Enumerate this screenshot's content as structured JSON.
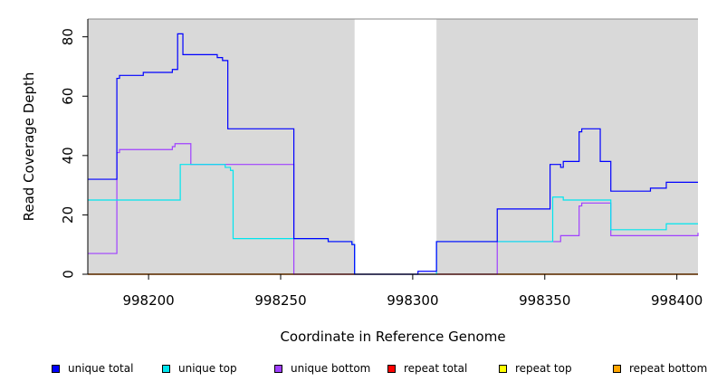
{
  "chart_data": {
    "type": "line",
    "title": "",
    "xlabel": "Coordinate in Reference Genome",
    "ylabel": "Read Coverage Depth",
    "xlim": [
      998177,
      998408
    ],
    "ylim": [
      0,
      86
    ],
    "x_ticks": [
      998200,
      998250,
      998300,
      998350,
      998400
    ],
    "y_ticks": [
      0,
      20,
      40,
      60,
      80
    ],
    "shaded_regions": [
      [
        998177,
        998278
      ],
      [
        998309,
        998408
      ]
    ],
    "shade_color": "#d9d9d9",
    "legend_placement": "bottom",
    "series": [
      {
        "name": "unique total",
        "color": "#0000ff",
        "x": [
          998177,
          998188,
          998189,
          998198,
          998209,
          998211,
          998213,
          998215,
          998218,
          998221,
          998223,
          998226,
          998228,
          998230,
          998231,
          998232,
          998241,
          998255,
          998264,
          998268,
          998277,
          998278,
          998290,
          998300,
          998302,
          998304,
          998309,
          998320,
          998330,
          998332,
          998340,
          998352,
          998356,
          998357,
          998363,
          998364,
          998365,
          998369,
          998371,
          998375,
          998381,
          998390,
          998395,
          998396,
          998403,
          998408
        ],
        "y": [
          32,
          66,
          67,
          68,
          69,
          81,
          74,
          74,
          74,
          74,
          74,
          73,
          72,
          49,
          49,
          49,
          49,
          12,
          12,
          11,
          10,
          0,
          0,
          0,
          1,
          1,
          11,
          11,
          11,
          22,
          22,
          37,
          36,
          38,
          48,
          49,
          49,
          49,
          38,
          28,
          28,
          29,
          29,
          31,
          31,
          31
        ]
      },
      {
        "name": "unique top",
        "color": "#00e5ee",
        "x": [
          998177,
          998200,
          998210,
          998212,
          998216,
          998226,
          998229,
          998231,
          998232,
          998255,
          998268,
          998277,
          998278,
          998309,
          998332,
          998352,
          998353,
          998356,
          998357,
          998363,
          998365,
          998372,
          998375,
          998381,
          998390,
          998396,
          998408
        ],
        "y": [
          25,
          25,
          25,
          37,
          37,
          37,
          36,
          35,
          12,
          12,
          11,
          10,
          0,
          11,
          11,
          11,
          26,
          26,
          25,
          25,
          25,
          25,
          15,
          15,
          15,
          17,
          17
        ],
        "end": 998408
      },
      {
        "name": "unique bottom",
        "color": "#a040ff",
        "x": [
          998177,
          998188,
          998189,
          998198,
          998209,
          998210,
          998216,
          998230,
          998255,
          998309,
          998332,
          998340,
          998356,
          998362,
          998363,
          998364,
          998365,
          998369,
          998371,
          998375,
          998390,
          998408
        ],
        "y": [
          7,
          41,
          42,
          42,
          43,
          44,
          37,
          37,
          0,
          0,
          11,
          11,
          13,
          13,
          23,
          24,
          24,
          24,
          24,
          13,
          13,
          14
        ]
      },
      {
        "name": "repeat total",
        "color": "#ff0000",
        "x": [
          998177,
          998408
        ],
        "y": [
          0,
          0
        ]
      },
      {
        "name": "repeat top",
        "color": "#ffff00",
        "x": [
          998177,
          998408
        ],
        "y": [
          0,
          0
        ]
      },
      {
        "name": "repeat bottom",
        "color": "#ffa500",
        "x": [
          998177,
          998408
        ],
        "y": [
          0,
          0
        ]
      }
    ]
  },
  "legend": [
    {
      "label": "unique total",
      "color": "#0000ff"
    },
    {
      "label": "unique top",
      "color": "#00e5ee"
    },
    {
      "label": "unique bottom",
      "color": "#a040ff"
    },
    {
      "label": "repeat total",
      "color": "#ff0000"
    },
    {
      "label": "repeat top",
      "color": "#ffff00"
    },
    {
      "label": "repeat bottom",
      "color": "#ffa500"
    }
  ]
}
